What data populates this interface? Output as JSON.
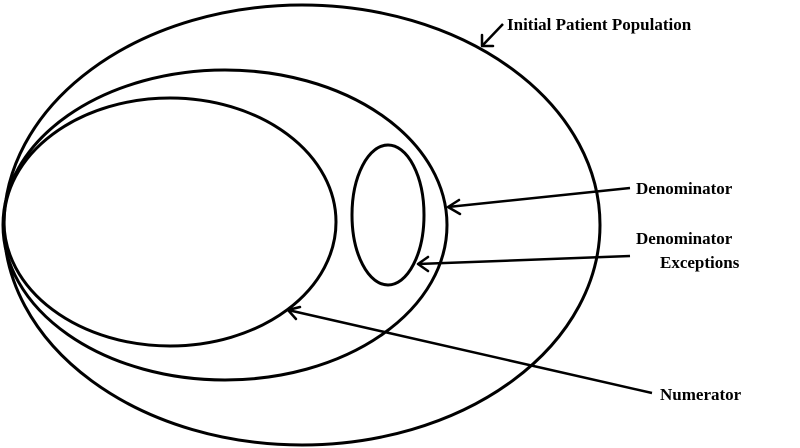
{
  "labels": {
    "initial_patient_population": "Initial Patient Population",
    "denominator": "Denominator",
    "denominator_exceptions_line1": "Denominator",
    "denominator_exceptions_line2": "Exceptions",
    "numerator": "Numerator"
  },
  "colors": {
    "stroke": "#000000",
    "background": "#ffffff"
  }
}
